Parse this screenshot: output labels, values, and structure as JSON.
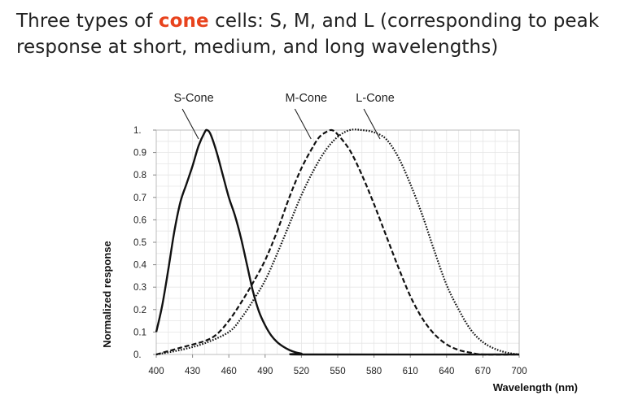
{
  "slide": {
    "title_before": "Three types of ",
    "title_accent": "cone",
    "title_after": " cells: S, M, and L (corresponding to peak response at short, medium, and long wavelengths)",
    "accent_color": "#e8431d"
  },
  "chart_data": {
    "type": "line",
    "title": "",
    "xlabel": "Wavelength (nm)",
    "ylabel": "Normalized response",
    "xlim": [
      400,
      700
    ],
    "ylim": [
      0,
      1
    ],
    "grid": true,
    "x_ticks": [
      400,
      430,
      460,
      490,
      520,
      550,
      580,
      610,
      640,
      670,
      700
    ],
    "y_ticks": [
      {
        "value": 0,
        "label": "0."
      },
      {
        "value": 0.1,
        "label": "0.1"
      },
      {
        "value": 0.2,
        "label": "0.2"
      },
      {
        "value": 0.3,
        "label": "0.3"
      },
      {
        "value": 0.4,
        "label": "0.4"
      },
      {
        "value": 0.5,
        "label": "0.5"
      },
      {
        "value": 0.6,
        "label": "0.6"
      },
      {
        "value": 0.7,
        "label": "0.7"
      },
      {
        "value": 0.8,
        "label": "0.8"
      },
      {
        "value": 0.9,
        "label": "0.9"
      },
      {
        "value": 1,
        "label": "1."
      }
    ],
    "series": [
      {
        "name": "S-Cone",
        "line_style": "solid",
        "label_anchor": [
          431,
          0.96
        ],
        "points": [
          [
            400,
            0.1
          ],
          [
            405,
            0.22
          ],
          [
            410,
            0.38
          ],
          [
            415,
            0.55
          ],
          [
            420,
            0.68
          ],
          [
            425,
            0.76
          ],
          [
            430,
            0.84
          ],
          [
            435,
            0.93
          ],
          [
            440,
            0.99
          ],
          [
            442,
            1.0
          ],
          [
            445,
            0.98
          ],
          [
            450,
            0.9
          ],
          [
            455,
            0.8
          ],
          [
            460,
            0.7
          ],
          [
            465,
            0.62
          ],
          [
            470,
            0.52
          ],
          [
            475,
            0.4
          ],
          [
            480,
            0.28
          ],
          [
            485,
            0.19
          ],
          [
            490,
            0.13
          ],
          [
            495,
            0.085
          ],
          [
            500,
            0.055
          ],
          [
            505,
            0.035
          ],
          [
            510,
            0.02
          ],
          [
            515,
            0.01
          ],
          [
            520,
            0.004
          ],
          [
            525,
            0.0
          ],
          [
            700,
            0.0
          ]
        ]
      },
      {
        "name": "M-Cone",
        "line_style": "dashed",
        "label_anchor": [
          524,
          0.96
        ],
        "points": [
          [
            400,
            0.0
          ],
          [
            420,
            0.03
          ],
          [
            440,
            0.06
          ],
          [
            450,
            0.09
          ],
          [
            460,
            0.15
          ],
          [
            470,
            0.23
          ],
          [
            480,
            0.32
          ],
          [
            490,
            0.42
          ],
          [
            500,
            0.55
          ],
          [
            510,
            0.7
          ],
          [
            520,
            0.83
          ],
          [
            530,
            0.93
          ],
          [
            535,
            0.97
          ],
          [
            540,
            0.99
          ],
          [
            545,
            1.0
          ],
          [
            550,
            0.98
          ],
          [
            560,
            0.91
          ],
          [
            570,
            0.8
          ],
          [
            580,
            0.67
          ],
          [
            590,
            0.53
          ],
          [
            600,
            0.39
          ],
          [
            610,
            0.26
          ],
          [
            620,
            0.16
          ],
          [
            630,
            0.09
          ],
          [
            640,
            0.045
          ],
          [
            650,
            0.02
          ],
          [
            660,
            0.008
          ],
          [
            670,
            0.0
          ],
          [
            700,
            0.0
          ]
        ]
      },
      {
        "name": "L-Cone",
        "line_style": "dotted",
        "label_anchor": [
          581,
          0.96
        ],
        "points": [
          [
            400,
            0.0
          ],
          [
            420,
            0.02
          ],
          [
            440,
            0.05
          ],
          [
            460,
            0.1
          ],
          [
            470,
            0.16
          ],
          [
            480,
            0.24
          ],
          [
            490,
            0.33
          ],
          [
            500,
            0.45
          ],
          [
            510,
            0.58
          ],
          [
            520,
            0.71
          ],
          [
            530,
            0.82
          ],
          [
            540,
            0.91
          ],
          [
            550,
            0.97
          ],
          [
            560,
            1.0
          ],
          [
            570,
            1.0
          ],
          [
            580,
            0.99
          ],
          [
            590,
            0.96
          ],
          [
            600,
            0.88
          ],
          [
            610,
            0.76
          ],
          [
            620,
            0.62
          ],
          [
            630,
            0.46
          ],
          [
            640,
            0.31
          ],
          [
            650,
            0.2
          ],
          [
            660,
            0.11
          ],
          [
            670,
            0.055
          ],
          [
            680,
            0.025
          ],
          [
            690,
            0.008
          ],
          [
            700,
            0.0
          ]
        ]
      }
    ]
  }
}
